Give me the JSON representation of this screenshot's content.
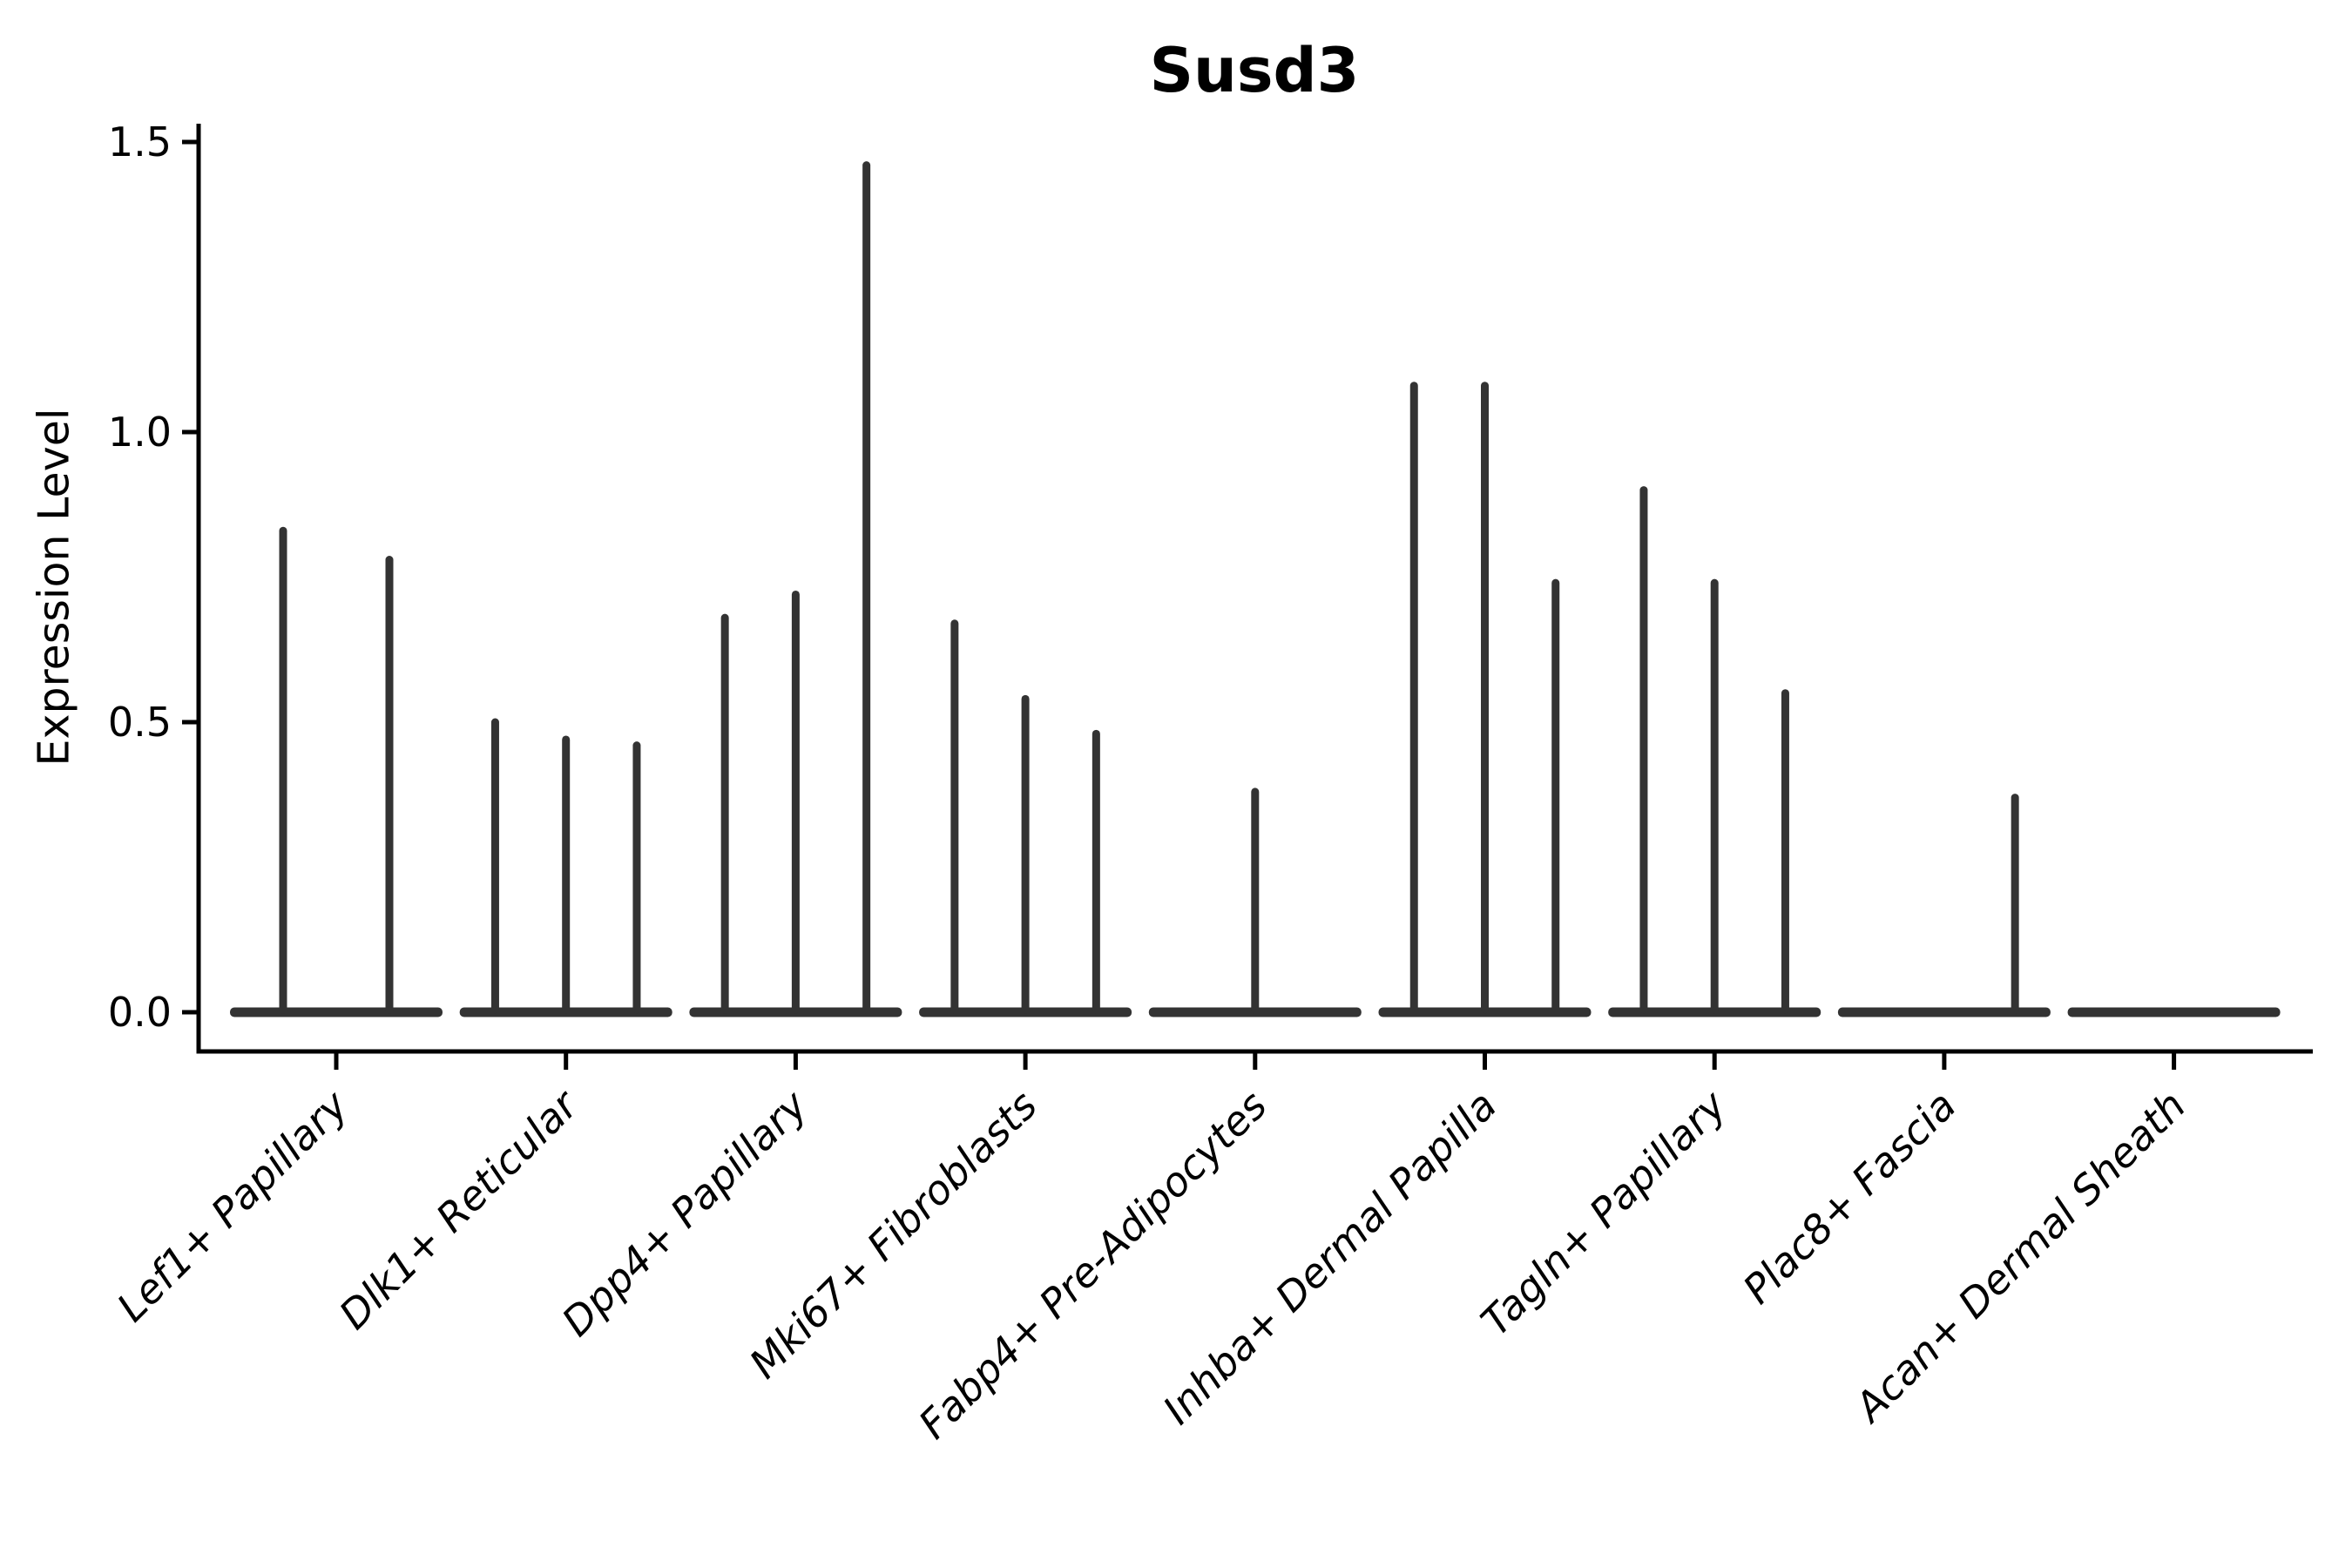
{
  "figure": {
    "background": "#ffffff"
  },
  "colors": {
    "ink": "#000000",
    "violin": "#333333"
  },
  "chart_data": {
    "type": "violin",
    "title": "Susd3",
    "ylabel": "Expression Level",
    "xlabel": "",
    "ylim": [
      0,
      1.5
    ],
    "grid": false,
    "legend": null,
    "yticks": [
      {
        "value": 0.0,
        "label": "0.0"
      },
      {
        "value": 0.5,
        "label": "0.5"
      },
      {
        "value": 1.0,
        "label": "1.0"
      },
      {
        "value": 1.5,
        "label": "1.5"
      }
    ],
    "categories": [
      "Lef1+ Papillary",
      "Dlk1+ Reticular",
      "Dpp4+ Papillary",
      "Mki67+ Fibroblasts",
      "Fabp4+ Pre-Adipocytes",
      "Inhba+ Dermal Papilla",
      "Tagln+ Papillary",
      "Plac8+ Fascia",
      "Acan+ Dermal Sheath"
    ],
    "groups": [
      {
        "label": "Lef1+ Papillary",
        "violins": [
          {
            "pos": 0.25,
            "peak": 0.83
          },
          {
            "pos": 0.75,
            "peak": 0.78
          }
        ]
      },
      {
        "label": "Dlk1+ Reticular",
        "violins": [
          {
            "pos": 0.167,
            "peak": 0.5
          },
          {
            "pos": 0.5,
            "peak": 0.47
          },
          {
            "pos": 0.833,
            "peak": 0.46
          }
        ]
      },
      {
        "label": "Dpp4+ Papillary",
        "violins": [
          {
            "pos": 0.167,
            "peak": 0.68
          },
          {
            "pos": 0.5,
            "peak": 0.72
          },
          {
            "pos": 0.833,
            "peak": 1.46
          }
        ]
      },
      {
        "label": "Mki67+ Fibroblasts",
        "violins": [
          {
            "pos": 0.167,
            "peak": 0.67
          },
          {
            "pos": 0.5,
            "peak": 0.54
          },
          {
            "pos": 0.833,
            "peak": 0.48
          }
        ]
      },
      {
        "label": "Fabp4+ Pre-Adipocytes",
        "violins": [
          {
            "pos": 0.5,
            "peak": 0.38
          }
        ]
      },
      {
        "label": "Inhba+ Dermal Papilla",
        "violins": [
          {
            "pos": 0.167,
            "peak": 1.08
          },
          {
            "pos": 0.5,
            "peak": 1.08
          },
          {
            "pos": 0.833,
            "peak": 0.74
          }
        ]
      },
      {
        "label": "Tagln+ Papillary",
        "violins": [
          {
            "pos": 0.167,
            "peak": 0.9
          },
          {
            "pos": 0.5,
            "peak": 0.74
          },
          {
            "pos": 0.833,
            "peak": 0.55
          }
        ]
      },
      {
        "label": "Plac8+ Fascia",
        "violins": [
          {
            "pos": 0.833,
            "peak": 0.37
          }
        ]
      },
      {
        "label": "Acan+ Dermal Sheath",
        "violins": []
      }
    ]
  }
}
